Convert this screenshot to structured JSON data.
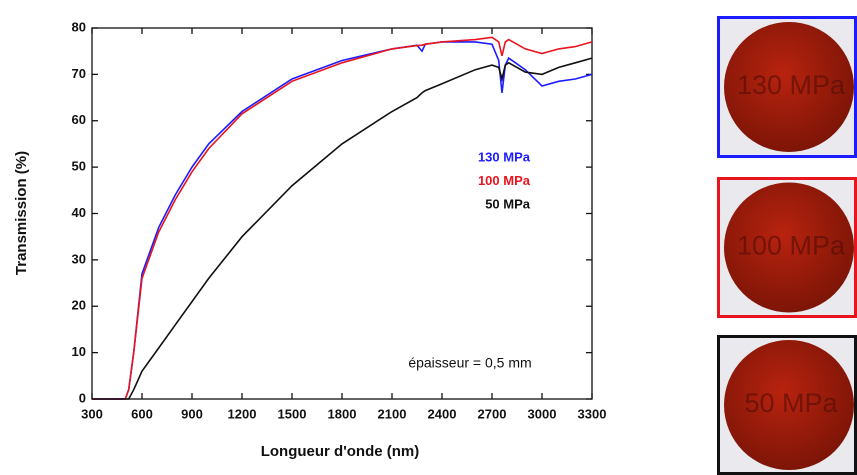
{
  "chart_data": {
    "type": "line",
    "x_label": "Longueur d'onde (nm)",
    "y_label": "Transmission (%)",
    "annotation": "épaisseur = 0,5 mm",
    "x": [
      300,
      450,
      500,
      520,
      550,
      600,
      700,
      800,
      900,
      1000,
      1200,
      1500,
      1800,
      2100,
      2250,
      2280,
      2300,
      2400,
      2600,
      2700,
      2740,
      2760,
      2780,
      2800,
      2900,
      3000,
      3100,
      3200,
      3300
    ],
    "series": [
      {
        "name": "130 MPa",
        "color": "#1c1cff",
        "values": [
          0,
          0,
          0,
          2,
          10,
          27,
          37,
          44,
          50,
          55,
          62,
          69,
          73,
          75.5,
          76.3,
          75,
          76.5,
          77,
          77,
          76.5,
          73,
          66,
          72,
          73.5,
          71,
          67.5,
          68.5,
          69,
          70
        ]
      },
      {
        "name": "100 MPa",
        "color": "#e8141e",
        "values": [
          0,
          0,
          0,
          2,
          10,
          26,
          36,
          43,
          49,
          54,
          61.5,
          68.5,
          72.5,
          75.5,
          76.2,
          76.3,
          76.5,
          77,
          77.5,
          78,
          77,
          74,
          77,
          77.5,
          75.5,
          74.5,
          75.5,
          76,
          77
        ]
      },
      {
        "name": "50 MPa",
        "color": "#111111",
        "values": [
          0,
          0,
          0,
          0,
          2,
          6,
          11,
          16,
          21,
          26,
          35,
          46,
          55,
          62,
          65,
          66,
          66.5,
          68,
          71,
          72,
          71.5,
          69,
          72,
          72.5,
          70.5,
          70,
          71.5,
          72.5,
          73.5
        ]
      }
    ],
    "xlim": [
      300,
      3300
    ],
    "xticks": [
      300,
      600,
      900,
      1200,
      1500,
      1800,
      2100,
      2400,
      2700,
      3000,
      3300
    ],
    "ylim": [
      0,
      80
    ],
    "yticks": [
      0,
      10,
      20,
      30,
      40,
      50,
      60,
      70,
      80
    ],
    "grid": false
  },
  "photos": [
    {
      "label": "130 MPa",
      "frame_color": "#1c1cff"
    },
    {
      "label": "100 MPa",
      "frame_color": "#e8141e"
    },
    {
      "label": "50 MPa",
      "frame_color": "#111111"
    }
  ]
}
